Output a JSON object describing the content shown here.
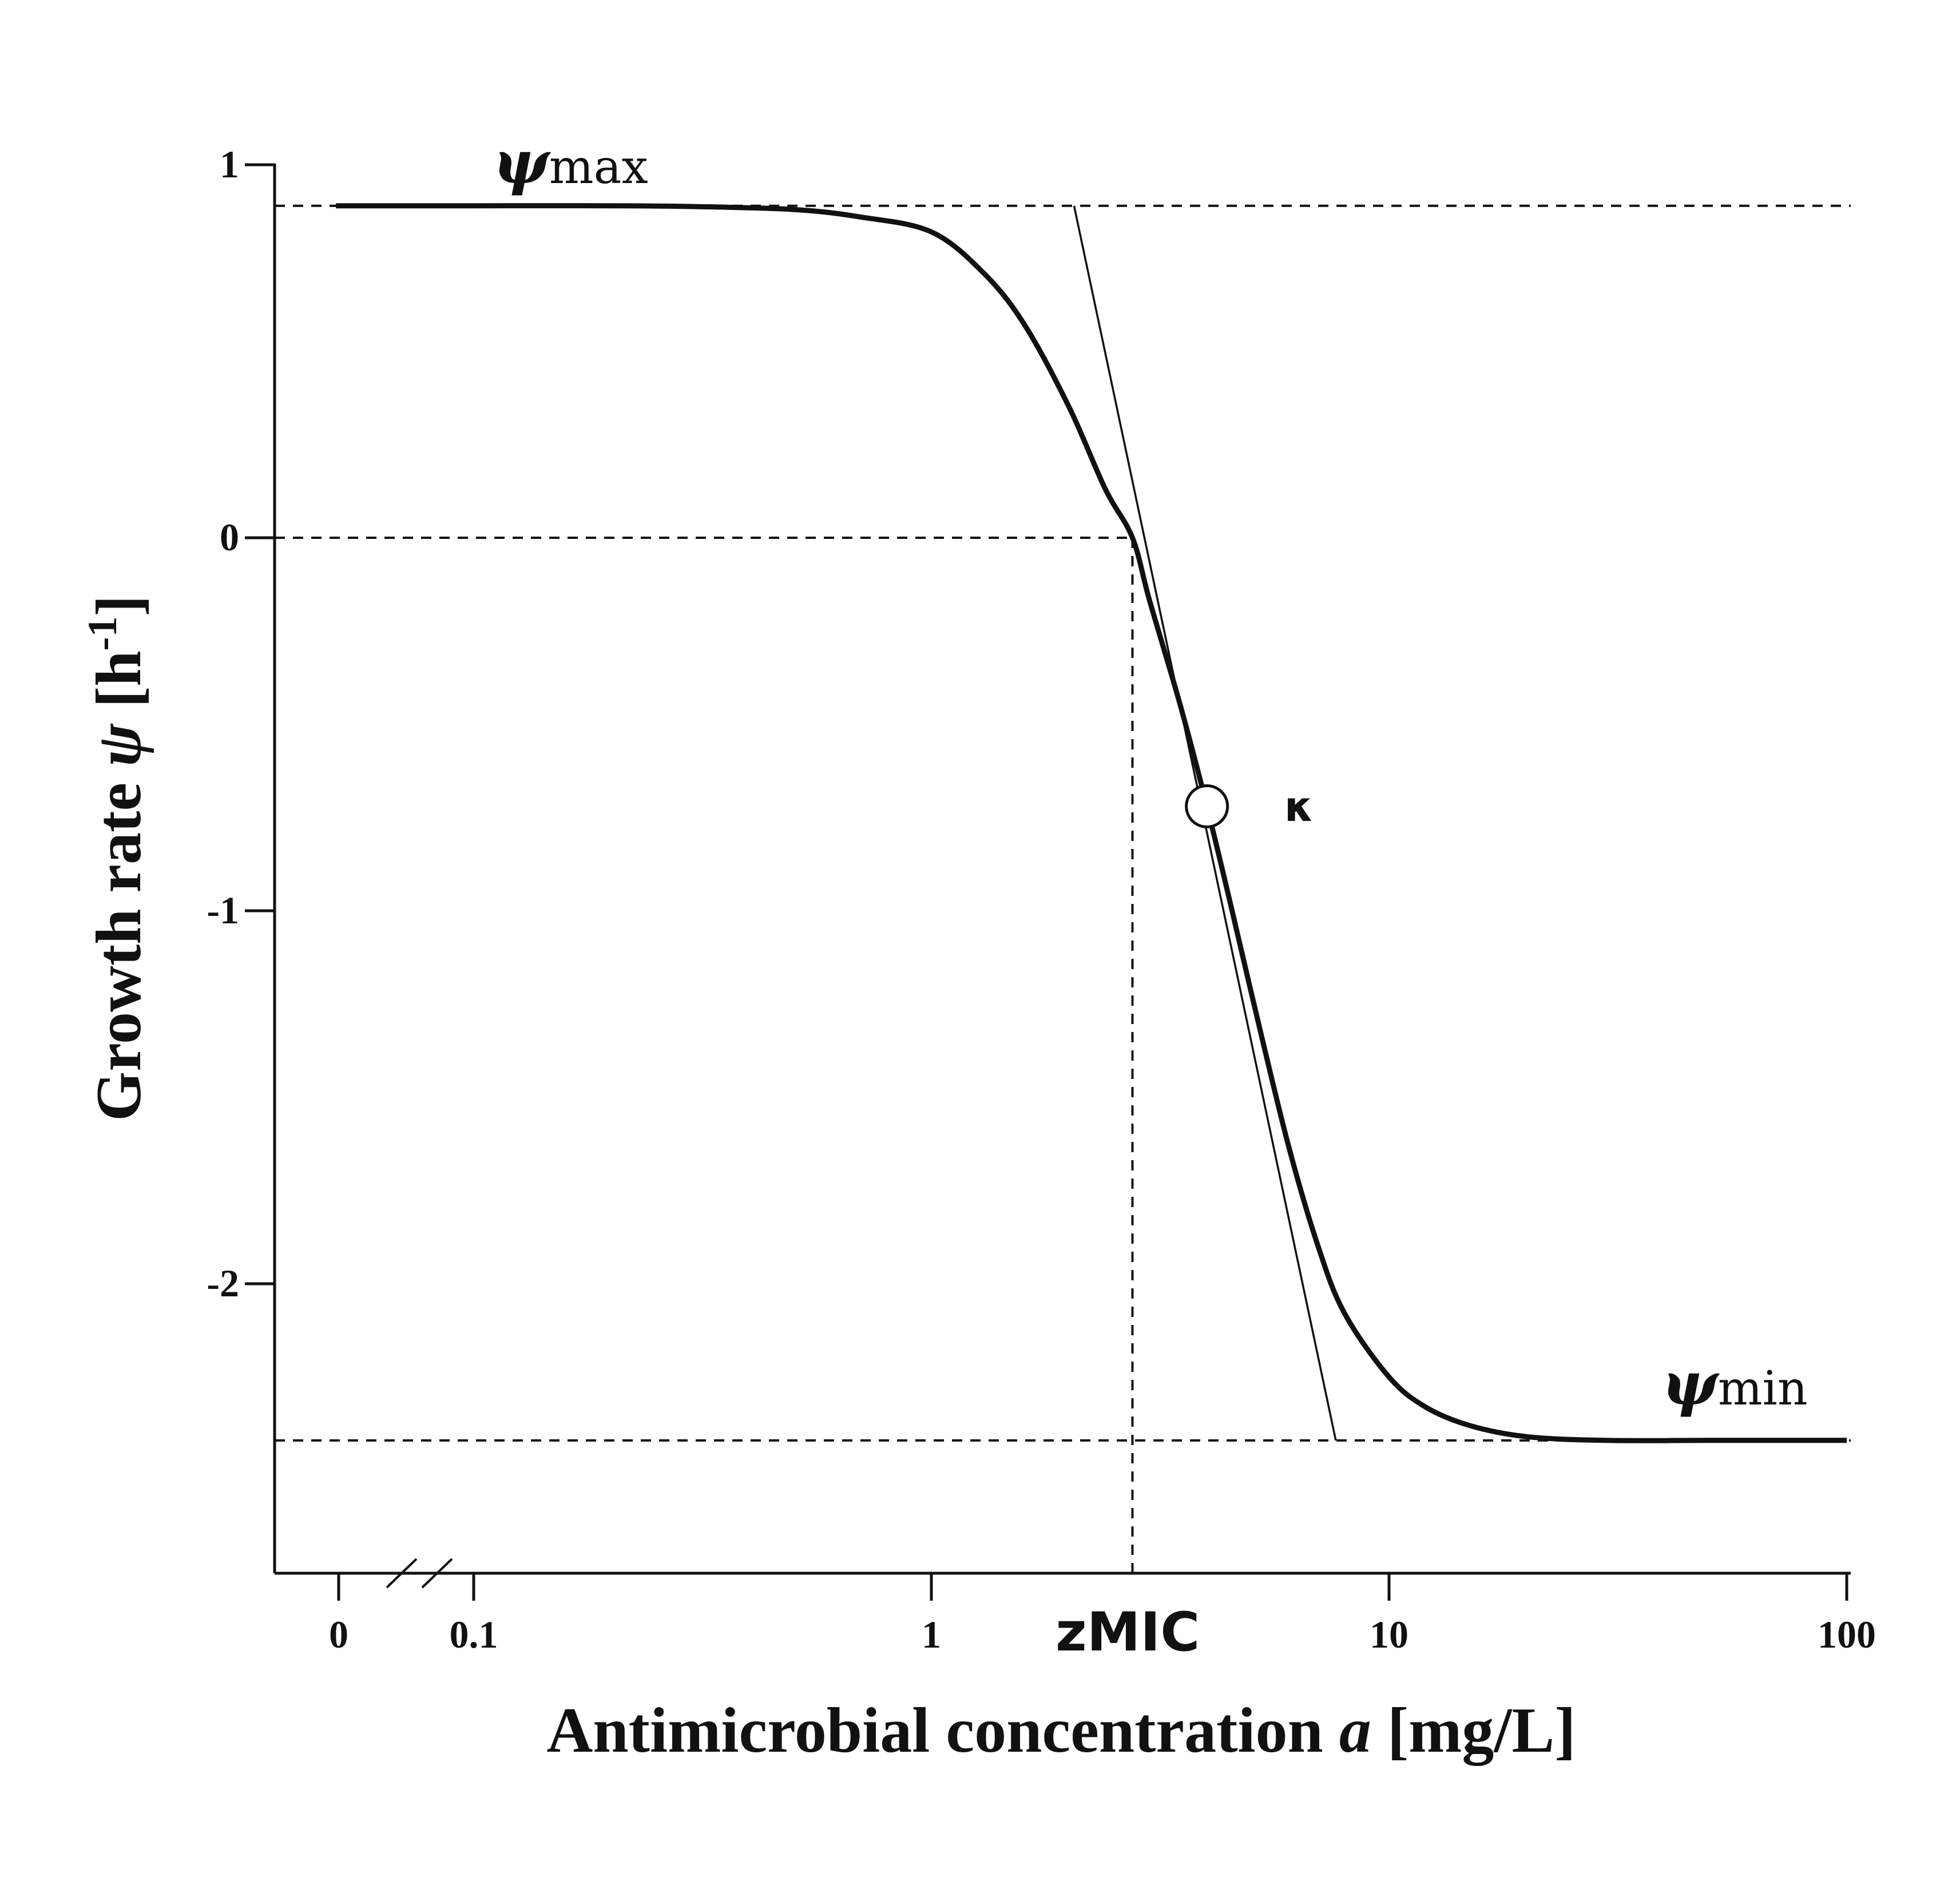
{
  "chart_data": {
    "type": "line",
    "xlabel_prefix": "Antimicrobial concentration ",
    "xlabel_var": "a",
    "xlabel_unit": " [mg/L]",
    "ylabel_prefix": "Growth rate ",
    "ylabel_var": "ψ",
    "ylabel_unit_open": " [h",
    "ylabel_unit_sup": "-1",
    "ylabel_unit_close": "]",
    "x_scale": "log",
    "x_axis_break": true,
    "x_ticks": [
      {
        "value": 0,
        "label": "0"
      },
      {
        "value": 0.1,
        "label": "0.1"
      },
      {
        "value": 1,
        "label": "1"
      },
      {
        "value": 10,
        "label": "10"
      },
      {
        "value": 100,
        "label": "100"
      }
    ],
    "y_ticks": [
      {
        "value": 1,
        "label": "1"
      },
      {
        "value": 0,
        "label": "0"
      },
      {
        "value": -1,
        "label": "-1"
      },
      {
        "value": -2,
        "label": "-2"
      }
    ],
    "ylim": [
      -2.75,
      1.0
    ],
    "xlim": [
      0.05,
      100
    ],
    "grid": false,
    "legend": "none",
    "params": {
      "psi_max": 0.89,
      "psi_min": -2.42,
      "zMIC": 2.75,
      "kappa": 4.0,
      "inflection_a": 4.0,
      "inflection_psi": -0.72
    },
    "annotations": {
      "psi_max_symbol": "ψ",
      "psi_max_sub": "max",
      "psi_min_symbol": "ψ",
      "psi_min_sub": "min",
      "zmic": "zMIC",
      "kappa": "κ"
    },
    "series": [
      {
        "x": [
          0.05,
          0.1,
          0.2,
          0.3,
          0.5,
          0.7,
          1.0,
          1.3,
          1.6,
          2.0,
          2.4,
          2.75,
          3.0,
          3.5,
          4.0,
          4.5,
          5.0,
          6.0,
          7.0,
          8.0,
          10.0,
          12.0,
          15.0,
          20.0,
          30.0,
          50.0,
          100.0
        ],
        "y": [
          0.89,
          0.89,
          0.89,
          0.888,
          0.88,
          0.86,
          0.82,
          0.71,
          0.57,
          0.35,
          0.13,
          0.0,
          -0.17,
          -0.45,
          -0.72,
          -0.98,
          -1.22,
          -1.62,
          -1.9,
          -2.08,
          -2.25,
          -2.33,
          -2.38,
          -2.41,
          -2.42,
          -2.42,
          -2.42
        ]
      }
    ],
    "tangent": {
      "x": [
        2.05,
        7.65
      ],
      "y": [
        0.89,
        -2.42
      ]
    }
  }
}
